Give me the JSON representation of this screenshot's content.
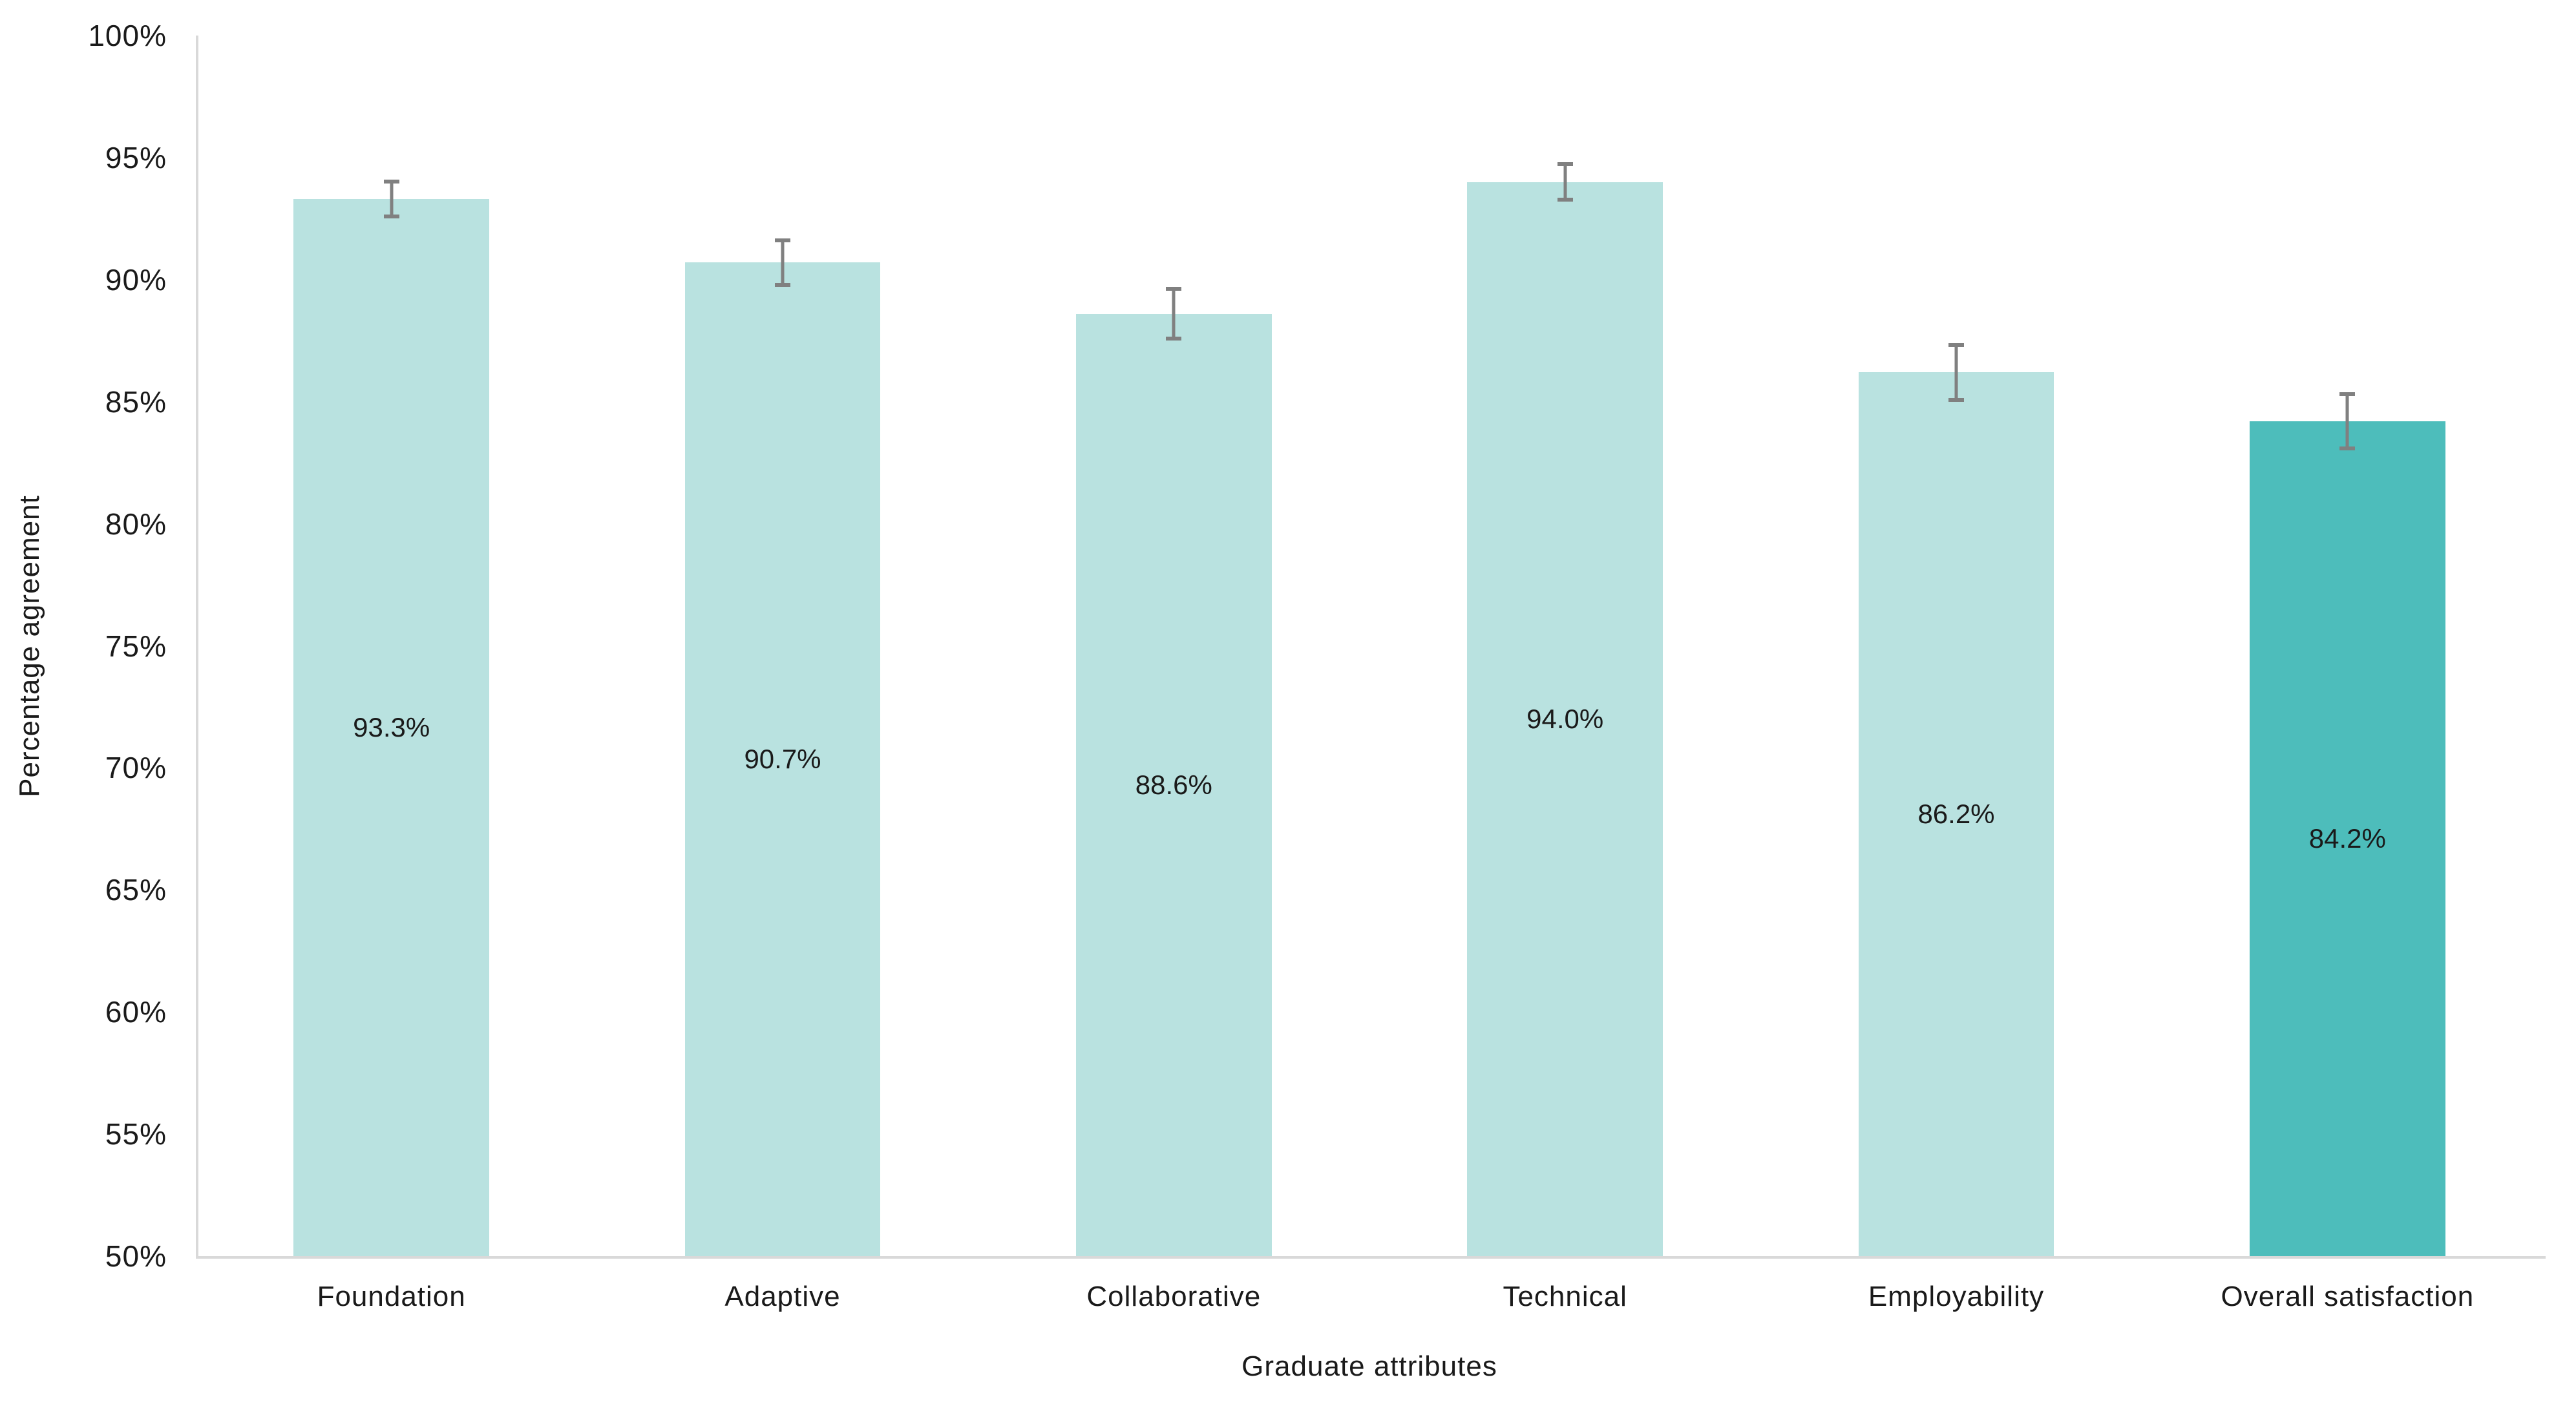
{
  "chart_data": {
    "type": "bar",
    "title": "",
    "xlabel": "Graduate attributes",
    "ylabel": "Percentage agreement",
    "categories": [
      "Foundation",
      "Adaptive",
      "Collaborative",
      "Technical",
      "Employability",
      "Overall satisfaction"
    ],
    "values": [
      93.3,
      90.7,
      88.6,
      94.0,
      86.2,
      84.2
    ],
    "value_labels": [
      "93.3%",
      "90.7%",
      "88.6%",
      "94.0%",
      "86.2%",
      "84.2%"
    ],
    "errors": [
      0.8,
      1.0,
      1.1,
      0.8,
      1.2,
      1.2
    ],
    "ylim": [
      50,
      100
    ],
    "ytick_step": 5,
    "ytick_labels": [
      "50%",
      "55%",
      "60%",
      "65%",
      "70%",
      "75%",
      "80%",
      "85%",
      "90%",
      "95%",
      "100%"
    ],
    "grid": false,
    "legend": "none",
    "error_bars": true,
    "value_label_position": "inside-center",
    "colors": {
      "bar_fill": "#b9e2e0",
      "highlight_fill": "#4dbdbb",
      "highlight_index": 5,
      "error_bar": "#808080",
      "axis_line": "#d9d9d9",
      "text": "#1a1a1a",
      "background": "#ffffff"
    }
  }
}
